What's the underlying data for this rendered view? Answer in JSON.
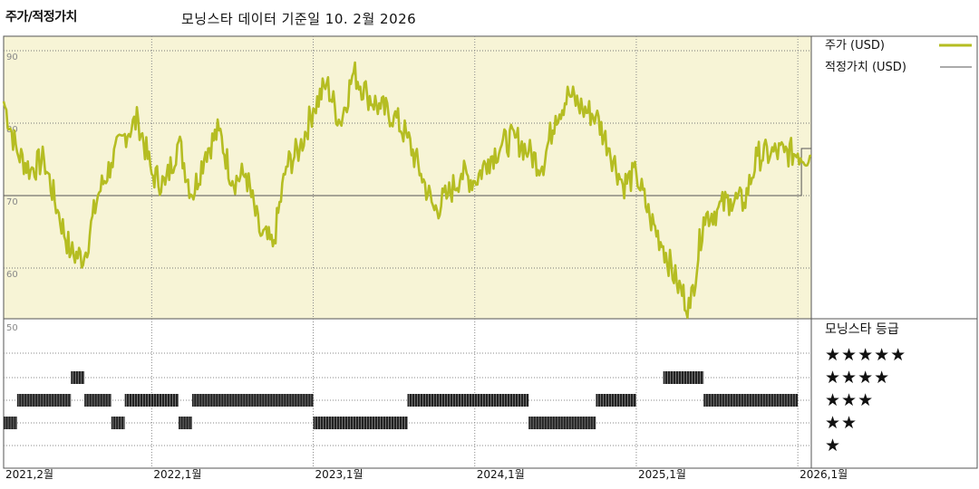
{
  "header": {
    "title": "주가/적정가치",
    "subtitle": "모닝스타 데이터 기준일 10. 2월 2026"
  },
  "legend": {
    "price_label": "주가 (USD)",
    "fair_label": "적정가치 (USD)",
    "rating_title": "모닝스타 등급",
    "star_rows": [
      "★★★★★",
      "★★★★",
      "★★★",
      "★★",
      "★"
    ]
  },
  "colors": {
    "price": "#b5bd22",
    "fair": "#555555",
    "upper_bg": "#f7f4d6",
    "grid": "#555555",
    "rating_bar": "#222222"
  },
  "chart_data": {
    "type": "line",
    "title": "주가/적정가치",
    "ylim": [
      53,
      92
    ],
    "yticks": [
      60,
      70,
      80,
      90
    ],
    "xrange": [
      "2021-02",
      "2026-02"
    ],
    "xtick_labels": [
      "2021,2월",
      "2022,1월",
      "2023,1월",
      "2024,1월",
      "2025,1월",
      "2026,1월"
    ],
    "series": [
      {
        "name": "주가 (USD)",
        "points": [
          [
            "2021-02",
            83
          ],
          [
            "2021-03",
            76
          ],
          [
            "2021-04",
            73.5
          ],
          [
            "2021-05",
            75
          ],
          [
            "2021-06",
            68
          ],
          [
            "2021-07",
            62
          ],
          [
            "2021-08",
            61.5
          ],
          [
            "2021-09",
            70
          ],
          [
            "2021-10",
            74.5
          ],
          [
            "2021-11",
            78.5
          ],
          [
            "2021-12",
            80.5
          ],
          [
            "2022-01",
            73
          ],
          [
            "2022-02",
            71.5
          ],
          [
            "2022-03",
            77.5
          ],
          [
            "2022-04",
            70
          ],
          [
            "2022-05",
            76
          ],
          [
            "2022-06",
            79
          ],
          [
            "2022-07",
            72
          ],
          [
            "2022-08",
            73
          ],
          [
            "2022-09",
            65
          ],
          [
            "2022-10",
            63
          ],
          [
            "2022-11",
            74
          ],
          [
            "2022-12",
            76.5
          ],
          [
            "2023-01",
            82
          ],
          [
            "2023-02",
            85.5
          ],
          [
            "2023-03",
            80
          ],
          [
            "2023-04",
            87
          ],
          [
            "2023-05",
            84
          ],
          [
            "2023-06",
            82
          ],
          [
            "2023-07",
            81
          ],
          [
            "2023-08",
            78
          ],
          [
            "2023-09",
            73
          ],
          [
            "2023-10",
            68
          ],
          [
            "2023-11",
            70
          ],
          [
            "2023-12",
            73
          ],
          [
            "2024-01",
            72
          ],
          [
            "2024-02",
            75
          ],
          [
            "2024-03",
            77
          ],
          [
            "2024-04",
            78
          ],
          [
            "2024-05",
            76
          ],
          [
            "2024-06",
            74
          ],
          [
            "2024-07",
            81
          ],
          [
            "2024-08",
            84
          ],
          [
            "2024-09",
            82
          ],
          [
            "2024-10",
            81
          ],
          [
            "2024-11",
            76.5
          ],
          [
            "2024-12",
            71.5
          ],
          [
            "2025-01",
            73
          ],
          [
            "2025-02",
            67
          ],
          [
            "2025-03",
            63
          ],
          [
            "2025-04",
            58
          ],
          [
            "2025-05",
            54.5
          ],
          [
            "2025-06",
            67
          ],
          [
            "2025-07",
            68
          ],
          [
            "2025-08",
            69.5
          ],
          [
            "2025-09",
            69
          ],
          [
            "2025-10",
            75.5
          ],
          [
            "2025-11",
            75.8
          ],
          [
            "2025-12",
            76
          ],
          [
            "2026-01",
            75.8
          ],
          [
            "2026-02",
            75.5
          ]
        ]
      },
      {
        "name": "적정가치 (USD)",
        "points": [
          [
            "2021-02",
            70
          ],
          [
            "2026-01",
            70
          ],
          [
            "2026-01",
            76.5
          ],
          [
            "2026-02",
            76.5
          ]
        ]
      }
    ],
    "star_rating": {
      "title": "모닝스타 등급",
      "levels": [
        5,
        4,
        3,
        2,
        1
      ],
      "periods": [
        {
          "from": "2021-02",
          "to": "2021-03",
          "stars": 2
        },
        {
          "from": "2021-03",
          "to": "2021-07",
          "stars": 3
        },
        {
          "from": "2021-07",
          "to": "2021-08",
          "stars": 4
        },
        {
          "from": "2021-08",
          "to": "2021-10",
          "stars": 3
        },
        {
          "from": "2021-10",
          "to": "2021-11",
          "stars": 2
        },
        {
          "from": "2021-11",
          "to": "2022-03",
          "stars": 3
        },
        {
          "from": "2022-03",
          "to": "2022-04",
          "stars": 2
        },
        {
          "from": "2022-04",
          "to": "2023-01",
          "stars": 3
        },
        {
          "from": "2023-01",
          "to": "2023-08",
          "stars": 2
        },
        {
          "from": "2023-08",
          "to": "2024-05",
          "stars": 3
        },
        {
          "from": "2024-05",
          "to": "2024-10",
          "stars": 2
        },
        {
          "from": "2024-10",
          "to": "2025-01",
          "stars": 3
        },
        {
          "from": "2025-03",
          "to": "2025-06",
          "stars": 4
        },
        {
          "from": "2025-06",
          "to": "2026-01",
          "stars": 3
        }
      ]
    }
  }
}
